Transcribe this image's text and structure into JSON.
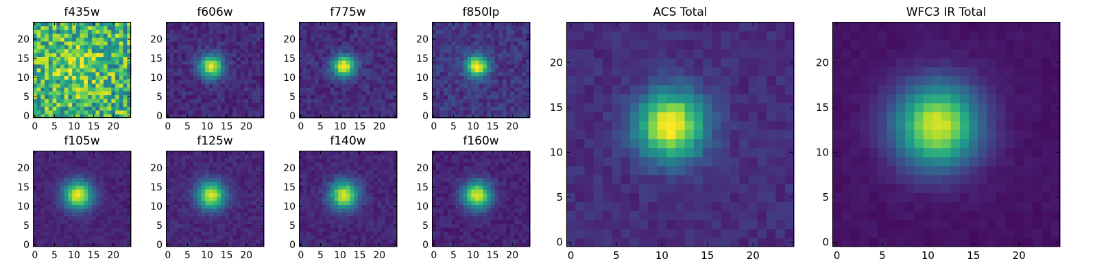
{
  "figure": {
    "colormap": "viridis",
    "tick_label_color": "#000000",
    "frame_color": "#000000"
  },
  "chart_data": [
    {
      "type": "heatmap",
      "title": "f435w",
      "grid": false,
      "xlim": [
        0,
        25
      ],
      "ylim": [
        0,
        25
      ],
      "x_ticks": [
        "0",
        "5",
        "10",
        "15",
        "20"
      ],
      "y_ticks": [
        "0",
        "5",
        "10",
        "15",
        "20"
      ],
      "source_center": [
        11.5,
        13.5
      ],
      "source_sigma": 3.5,
      "source_amplitude": 0.25,
      "background_level": 0.65,
      "noise_level": 0.3
    },
    {
      "type": "heatmap",
      "title": "f606w",
      "grid": false,
      "xlim": [
        0,
        25
      ],
      "ylim": [
        0,
        25
      ],
      "x_ticks": [
        "0",
        "5",
        "10",
        "15",
        "20"
      ],
      "y_ticks": [
        "0",
        "5",
        "10",
        "15",
        "20"
      ],
      "source_center": [
        11.5,
        13.5
      ],
      "source_sigma": 2.1,
      "source_amplitude": 0.85,
      "background_level": 0.12,
      "noise_level": 0.07
    },
    {
      "type": "heatmap",
      "title": "f775w",
      "grid": false,
      "xlim": [
        0,
        25
      ],
      "ylim": [
        0,
        25
      ],
      "x_ticks": [
        "0",
        "5",
        "10",
        "15",
        "20"
      ],
      "y_ticks": [
        "0",
        "5",
        "10",
        "15",
        "20"
      ],
      "source_center": [
        11.5,
        13.5
      ],
      "source_sigma": 2.0,
      "source_amplitude": 0.85,
      "background_level": 0.13,
      "noise_level": 0.07
    },
    {
      "type": "heatmap",
      "title": "f850lp",
      "grid": false,
      "xlim": [
        0,
        25
      ],
      "ylim": [
        0,
        25
      ],
      "x_ticks": [
        "0",
        "5",
        "10",
        "15",
        "20"
      ],
      "y_ticks": [
        "0",
        "5",
        "10",
        "15",
        "20"
      ],
      "source_center": [
        11.5,
        13.5
      ],
      "source_sigma": 2.0,
      "source_amplitude": 0.85,
      "background_level": 0.16,
      "noise_level": 0.08
    },
    {
      "type": "heatmap",
      "title": "f105w",
      "grid": false,
      "xlim": [
        0,
        25
      ],
      "ylim": [
        0,
        25
      ],
      "x_ticks": [
        "0",
        "5",
        "10",
        "15",
        "20"
      ],
      "y_ticks": [
        "0",
        "5",
        "10",
        "15",
        "20"
      ],
      "source_center": [
        11.5,
        13.5
      ],
      "source_sigma": 2.6,
      "source_amplitude": 0.88,
      "background_level": 0.1,
      "noise_level": 0.04
    },
    {
      "type": "heatmap",
      "title": "f125w",
      "grid": false,
      "xlim": [
        0,
        25
      ],
      "ylim": [
        0,
        25
      ],
      "x_ticks": [
        "0",
        "5",
        "10",
        "15",
        "20"
      ],
      "y_ticks": [
        "0",
        "5",
        "10",
        "15",
        "20"
      ],
      "source_center": [
        11.5,
        13.5
      ],
      "source_sigma": 2.5,
      "source_amplitude": 0.85,
      "background_level": 0.11,
      "noise_level": 0.05
    },
    {
      "type": "heatmap",
      "title": "f140w",
      "grid": false,
      "xlim": [
        0,
        25
      ],
      "ylim": [
        0,
        25
      ],
      "x_ticks": [
        "0",
        "5",
        "10",
        "15",
        "20"
      ],
      "y_ticks": [
        "0",
        "5",
        "10",
        "15",
        "20"
      ],
      "source_center": [
        11.5,
        13.5
      ],
      "source_sigma": 2.5,
      "source_amplitude": 0.85,
      "background_level": 0.11,
      "noise_level": 0.05
    },
    {
      "type": "heatmap",
      "title": "f160w",
      "grid": false,
      "xlim": [
        0,
        25
      ],
      "ylim": [
        0,
        25
      ],
      "x_ticks": [
        "0",
        "5",
        "10",
        "15",
        "20"
      ],
      "y_ticks": [
        "0",
        "5",
        "10",
        "15",
        "20"
      ],
      "source_center": [
        11.5,
        13.5
      ],
      "source_sigma": 2.5,
      "source_amplitude": 0.85,
      "background_level": 0.1,
      "noise_level": 0.05
    },
    {
      "type": "heatmap",
      "title": "ACS Total",
      "grid": false,
      "xlim": [
        0,
        25
      ],
      "ylim": [
        0,
        25
      ],
      "x_ticks": [
        "0",
        "5",
        "10",
        "15",
        "20"
      ],
      "y_ticks": [
        "0",
        "5",
        "10",
        "15",
        "20"
      ],
      "source_center": [
        11.5,
        13.5
      ],
      "source_sigma": 2.6,
      "source_amplitude": 0.9,
      "background_level": 0.13,
      "noise_level": 0.05
    },
    {
      "type": "heatmap",
      "title": "WFC3 IR Total",
      "grid": false,
      "xlim": [
        0,
        25
      ],
      "ylim": [
        0,
        25
      ],
      "x_ticks": [
        "0",
        "5",
        "10",
        "15",
        "20"
      ],
      "y_ticks": [
        "0",
        "5",
        "10",
        "15",
        "20"
      ],
      "source_center": [
        11.5,
        13.5
      ],
      "source_sigma": 3.2,
      "source_amplitude": 0.9,
      "background_level": 0.05,
      "noise_level": 0.02
    }
  ]
}
